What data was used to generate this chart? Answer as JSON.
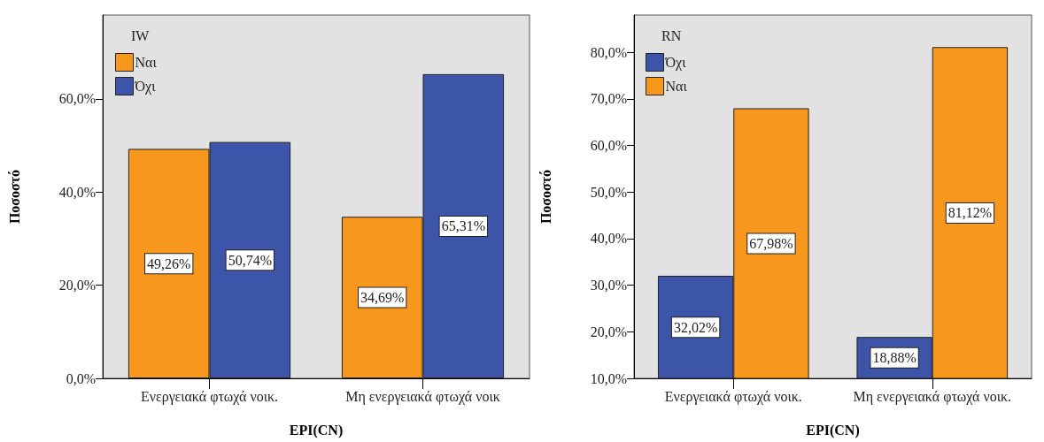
{
  "chart_data": [
    {
      "type": "bar",
      "xlabel": "EPI(CN)",
      "ylabel": "Ποσοστό",
      "legend_title": "IW",
      "legend": "top left",
      "categories": [
        "Ενεργειακά φτωχά νοικ.",
        "Μη ενεργειακά φτωχά νοικ"
      ],
      "ylim": [
        0,
        78
      ],
      "yticks": [
        {
          "value": 0,
          "label": "0,0%"
        },
        {
          "value": 20,
          "label": "20,0%"
        },
        {
          "value": 40,
          "label": "40,0%"
        },
        {
          "value": 60,
          "label": "60,0%"
        }
      ],
      "series": [
        {
          "name": "Ναι",
          "color": "#f7981d",
          "values": [
            49.26,
            34.69
          ],
          "value_labels": [
            "49,26%",
            "34,69%"
          ]
        },
        {
          "name": "Όχι",
          "color": "#3c55a8",
          "values": [
            50.74,
            65.31
          ],
          "value_labels": [
            "50,74%",
            "65,31%"
          ]
        }
      ]
    },
    {
      "type": "bar",
      "xlabel": "EPI(CN)",
      "ylabel": "Ποσοστό",
      "legend_title": "RN",
      "legend": "top left",
      "categories": [
        "Ενεργειακά φτωχά νοικ.",
        "Μη ενεργειακά φτωχά νοικ."
      ],
      "ylim": [
        10,
        88
      ],
      "yticks": [
        {
          "value": 10,
          "label": "10,0%"
        },
        {
          "value": 20,
          "label": "20,0%"
        },
        {
          "value": 30,
          "label": "30,0%"
        },
        {
          "value": 40,
          "label": "40,0%"
        },
        {
          "value": 50,
          "label": "50,0%"
        },
        {
          "value": 60,
          "label": "60,0%"
        },
        {
          "value": 70,
          "label": "70,0%"
        },
        {
          "value": 80,
          "label": "80,0%"
        }
      ],
      "series": [
        {
          "name": "Όχι",
          "color": "#3c55a8",
          "values": [
            32.02,
            18.88
          ],
          "value_labels": [
            "32,02%",
            "18,88%"
          ]
        },
        {
          "name": "Ναι",
          "color": "#f7981d",
          "values": [
            67.98,
            81.12
          ],
          "value_labels": [
            "67,98%",
            "81,12%"
          ]
        }
      ]
    }
  ]
}
